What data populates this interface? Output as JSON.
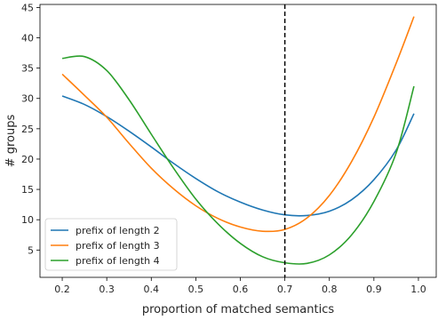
{
  "chart_data": {
    "type": "line",
    "title": "",
    "xlabel": "proportion of matched semantics",
    "ylabel": "# groups",
    "xlim": [
      0.15,
      1.04
    ],
    "ylim": [
      0.5,
      45.5
    ],
    "xticks": [
      "0.2",
      "0.3",
      "0.4",
      "0.5",
      "0.6",
      "0.7",
      "0.8",
      "0.9",
      "1.0"
    ],
    "yticks": [
      "5",
      "10",
      "15",
      "20",
      "25",
      "30",
      "35",
      "40",
      "45"
    ],
    "grid": false,
    "legend_position": "lower-left",
    "vline": {
      "x": 0.7,
      "style": "dashed",
      "color": "#000000"
    },
    "x": [
      0.2,
      0.25,
      0.3,
      0.35,
      0.4,
      0.45,
      0.5,
      0.55,
      0.6,
      0.65,
      0.7,
      0.75,
      0.8,
      0.85,
      0.9,
      0.95,
      0.99
    ],
    "series": [
      {
        "name": "prefix of length 2",
        "color": "#1f77b4",
        "values": [
          30.4,
          29.0,
          27.0,
          24.6,
          22.0,
          19.3,
          16.8,
          14.6,
          12.9,
          11.6,
          10.8,
          10.7,
          11.4,
          13.3,
          16.6,
          21.5,
          27.5
        ]
      },
      {
        "name": "prefix of length 3",
        "color": "#ff7f0e",
        "values": [
          34.0,
          30.5,
          26.9,
          22.6,
          18.5,
          15.1,
          12.3,
          10.2,
          8.8,
          8.1,
          8.4,
          10.3,
          14.0,
          19.6,
          26.9,
          35.8,
          43.5
        ]
      },
      {
        "name": "prefix of length 4",
        "color": "#2ca02c",
        "values": [
          36.6,
          36.9,
          34.6,
          29.8,
          24.1,
          18.5,
          13.4,
          9.3,
          6.1,
          3.9,
          2.9,
          2.8,
          4.2,
          7.5,
          13.0,
          21.0,
          32.0
        ]
      }
    ]
  }
}
